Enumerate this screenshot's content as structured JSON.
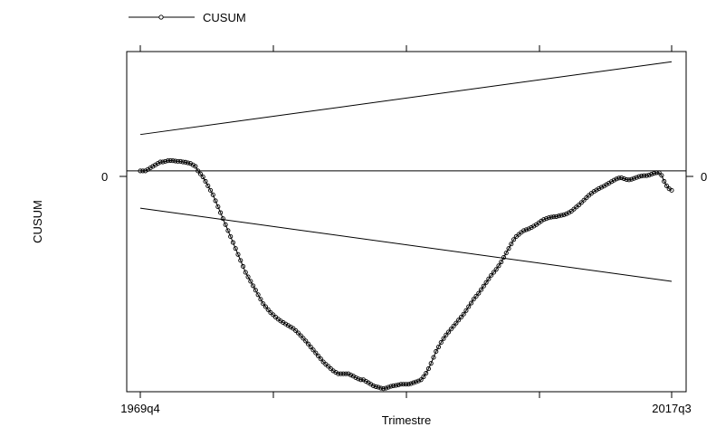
{
  "chart_data": {
    "type": "line",
    "title": "",
    "xlabel": "Trimestre",
    "ylabel": "CUSUM",
    "legend": {
      "position": "top-left",
      "entries": [
        "CUSUM"
      ]
    },
    "x_start_label": "1969q4",
    "x_end_label": "2017q3",
    "x_tick_labels": [
      "1969q4",
      "2017q3"
    ],
    "y_tick_labels": [
      "0"
    ],
    "series": [
      {
        "name": "CUSUM",
        "marker": "hollow-circle",
        "color": "#000000",
        "values": [
          0,
          0,
          0,
          0.5,
          1,
          1.5,
          2,
          2.5,
          3,
          3,
          3.2,
          3.4,
          3.5,
          3.4,
          3.3,
          3.2,
          3.2,
          3,
          2.9,
          2.7,
          2.5,
          2,
          1.5,
          0,
          -1,
          -2,
          -3.5,
          -5,
          -6.5,
          -8,
          -10,
          -12,
          -14,
          -16,
          -18,
          -20,
          -22,
          -24,
          -26,
          -28,
          -30,
          -32,
          -34,
          -35.5,
          -37,
          -38.5,
          -40,
          -41.5,
          -43,
          -44.5,
          -45.5,
          -46.5,
          -47.5,
          -48.2,
          -49,
          -49.7,
          -50.3,
          -50.8,
          -51.3,
          -51.8,
          -52.3,
          -52.8,
          -53.5,
          -54.3,
          -55.2,
          -56.1,
          -57,
          -58,
          -59,
          -60,
          -61,
          -62,
          -63,
          -64,
          -64.8,
          -65.5,
          -66.3,
          -67,
          -67.5,
          -68,
          -68,
          -68,
          -68,
          -68,
          -68.4,
          -68.8,
          -69.3,
          -69.7,
          -70,
          -70,
          -70.5,
          -71,
          -71.5,
          -72,
          -72.3,
          -72.5,
          -72.8,
          -73,
          -72.8,
          -72.5,
          -72.2,
          -72,
          -71.9,
          -71.7,
          -71.5,
          -71.5,
          -71.5,
          -71.5,
          -71.3,
          -71,
          -70.7,
          -70.4,
          -70,
          -69,
          -67.8,
          -66.3,
          -64.5,
          -62.5,
          -60.5,
          -59,
          -57.5,
          -56.2,
          -55,
          -54,
          -53,
          -52,
          -51,
          -50,
          -49,
          -48,
          -46.8,
          -45.5,
          -44.3,
          -43,
          -42,
          -41,
          -39.8,
          -38.6,
          -37.4,
          -36.2,
          -35,
          -34,
          -33,
          -31.8,
          -30.5,
          -29,
          -27.5,
          -26,
          -24.5,
          -23,
          -22,
          -21.3,
          -20.6,
          -20,
          -19.7,
          -19.4,
          -19,
          -18.5,
          -18,
          -17.4,
          -16.8,
          -16.3,
          -16,
          -15.7,
          -15.5,
          -15.4,
          -15.3,
          -15.1,
          -14.9,
          -14.7,
          -14.4,
          -14,
          -13.5,
          -12.8,
          -12.1,
          -11.4,
          -10.6,
          -9.8,
          -9,
          -8.2,
          -7.5,
          -6.9,
          -6.4,
          -5.9,
          -5.5,
          -5.1,
          -4.6,
          -4.1,
          -3.6,
          -3.1,
          -2.7,
          -2.4,
          -2.3,
          -2.6,
          -2.9,
          -3,
          -2.8,
          -2.5,
          -2.2,
          -1.9,
          -1.7,
          -1.6,
          -1.6,
          -1.4,
          -1.1,
          -0.8,
          -0.6,
          -0.6,
          -1.5,
          -3.5,
          -5,
          -6,
          -6.5
        ]
      }
    ],
    "bounds": {
      "upper": {
        "start": 12.2,
        "end": 36.6
      },
      "lower": {
        "start": -12.5,
        "end": -37
      }
    },
    "zero_line": 0,
    "ylim": [
      -74,
      40
    ],
    "grid": false
  }
}
